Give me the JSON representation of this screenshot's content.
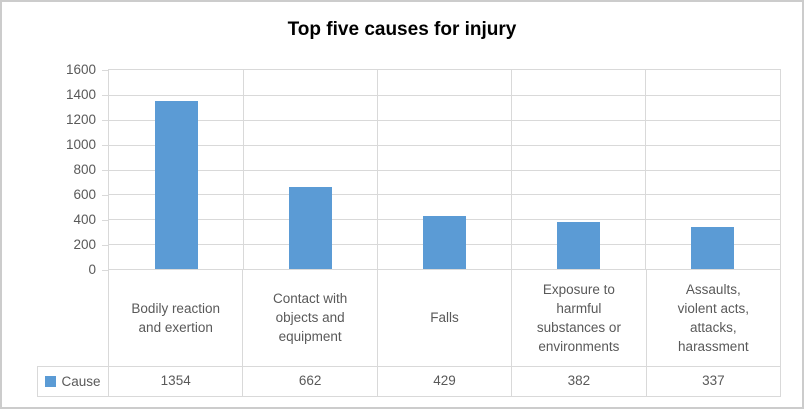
{
  "window": {
    "background": "#ffffff",
    "border_color": "#cccccc"
  },
  "chart": {
    "title": "Top five causes for injury"
  },
  "chart_data": {
    "type": "bar",
    "title": "Top five causes for injury",
    "categories": [
      "Bodily reaction and exertion",
      "Contact with objects and equipment",
      "Falls",
      "Exposure to harmful substances or environments",
      "Assaults, violent acts, attacks, harassment"
    ],
    "categories_wrapped": [
      "Bodily reaction\nand exertion",
      "Contact with\nobjects and\nequipment",
      "Falls",
      "Exposure to\nharmful\nsubstances or\nenvironments",
      "Assaults,\nviolent acts,\nattacks,\nharassment"
    ],
    "series": [
      {
        "name": "Cause",
        "values": [
          1354,
          662,
          429,
          382,
          337
        ]
      }
    ],
    "xlabel": "",
    "ylabel": "",
    "ylim": [
      0,
      1600
    ],
    "yticks": [
      0,
      200,
      400,
      600,
      800,
      1000,
      1200,
      1400,
      1600
    ],
    "grid": true,
    "legend_position": "bottom-left-of-data-table",
    "data_table_shown": true,
    "colors": {
      "bar": "#5b9bd5",
      "grid": "#d9d9d9",
      "axis_text": "#595959",
      "title_text": "#000000"
    }
  }
}
